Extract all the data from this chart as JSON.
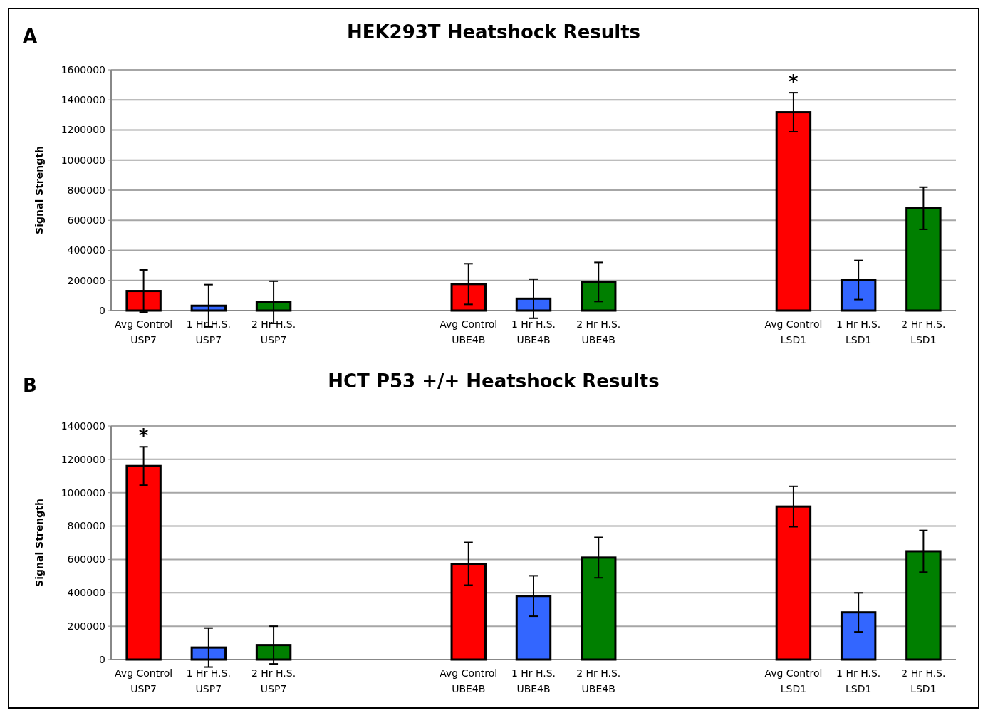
{
  "chart_data": [
    {
      "type": "bar",
      "title": "HEK293T Heatshock Results",
      "ylabel": "Signal Strength",
      "annotations": [
        "A",
        {
          "text": "*",
          "x": "Avg Control\nLSD1",
          "y": 1450000
        }
      ],
      "categories": [
        "Avg Control\nUSP7",
        "1 Hr H.S.\nUSP7",
        "2 Hr H.S.\nUSP7",
        null,
        null,
        "Avg Control\nUBE4B",
        "1 Hr H.S.\nUBE4B",
        "2 Hr H.S.\nUBE4B",
        null,
        null,
        "Avg Control\nLSD1",
        "1 Hr H.S.\nLSD1",
        "2 Hr H.S.\nLSD1"
      ],
      "values": [
        130000,
        32000,
        55000,
        null,
        null,
        176000,
        79000,
        190000,
        null,
        null,
        1318000,
        203000,
        680000
      ],
      "errors": [
        140000,
        140000,
        140000,
        null,
        null,
        135000,
        130000,
        130000,
        null,
        null,
        130000,
        130000,
        140000
      ],
      "colors": [
        "#ff0000",
        "#3366ff",
        "#007f00",
        null,
        null,
        "#ff0000",
        "#3366ff",
        "#007f00",
        null,
        null,
        "#ff0000",
        "#3366ff",
        "#007f00"
      ],
      "ylim": [
        0,
        1600000
      ],
      "yticks": [
        0,
        200000,
        400000,
        600000,
        800000,
        1000000,
        1200000,
        1400000,
        1600000
      ],
      "grid": "y"
    },
    {
      "type": "bar",
      "title": "HCT P53 +/+ Heatshock Results",
      "ylabel": "Signal Strength",
      "annotations": [
        "B",
        {
          "text": "*",
          "x": "Avg Control\nUSP7",
          "y": 1275000
        }
      ],
      "categories": [
        "Avg Control\nUSP7",
        "1 Hr H.S.\nUSP7",
        "2 Hr H.S.\nUSP7",
        null,
        null,
        "Avg Control\nUBE4B",
        "1 Hr H.S.\nUBE4B",
        "2 Hr H.S.\nUBE4B",
        null,
        null,
        "Avg Control\nLSD1",
        "1 Hr H.S.\nLSD1",
        "2 Hr H.S.\nLSD1"
      ],
      "values": [
        1160000,
        72000,
        87000,
        null,
        null,
        574000,
        381000,
        611000,
        null,
        null,
        917000,
        283000,
        649000
      ],
      "errors": [
        115000,
        117000,
        113000,
        null,
        null,
        128000,
        121000,
        121000,
        null,
        null,
        121000,
        117000,
        125000
      ],
      "colors": [
        "#ff0000",
        "#3366ff",
        "#007f00",
        null,
        null,
        "#ff0000",
        "#3366ff",
        "#007f00",
        null,
        null,
        "#ff0000",
        "#3366ff",
        "#007f00"
      ],
      "ylim": [
        0,
        1400000
      ],
      "yticks": [
        0,
        200000,
        400000,
        600000,
        800000,
        1000000,
        1200000,
        1400000
      ],
      "grid": "y"
    }
  ]
}
